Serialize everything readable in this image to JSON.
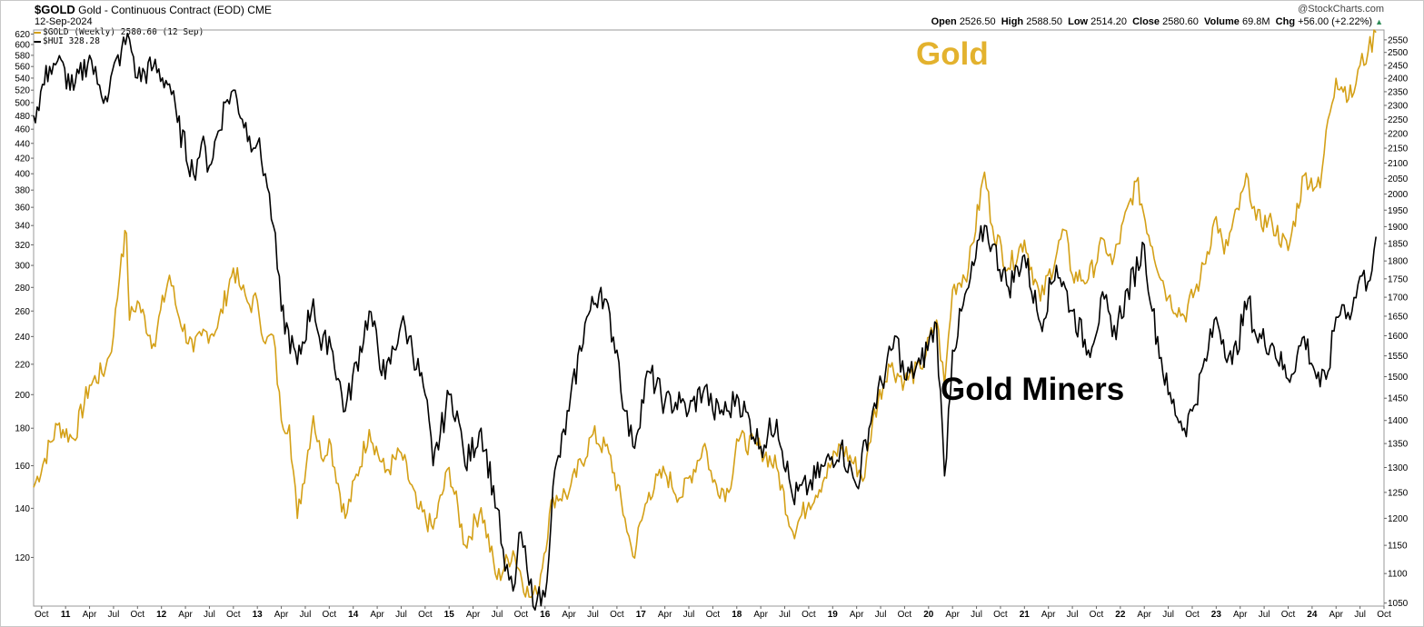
{
  "header": {
    "symbol": "$GOLD",
    "description": "Gold - Continuous Contract (EOD)",
    "exchange": "CME",
    "date": "12-Sep-2024",
    "credit": "@StockCharts.com",
    "open_label": "Open",
    "open": "2526.50",
    "high_label": "High",
    "high": "2588.50",
    "low_label": "Low",
    "low": "2514.20",
    "close_label": "Close",
    "close": "2580.60",
    "volume_label": "Volume",
    "volume": "69.8M",
    "chg_label": "Chg",
    "chg": "+56.00 (+2.22%)"
  },
  "legend": {
    "gold": "$GOLD (Weekly) 2580.60 (12 Sep)",
    "hui": "$HUI 328.28"
  },
  "colors": {
    "gold": "#D4A017",
    "hui": "#000000",
    "gold_text": "#E3B22E"
  },
  "annotations": {
    "gold": "Gold",
    "miners": "Gold Miners"
  },
  "chart_data": {
    "type": "line",
    "x_ticks": [
      "Oct",
      "11",
      "Apr",
      "Jul",
      "Oct",
      "12",
      "Apr",
      "Jul",
      "Oct",
      "13",
      "Apr",
      "Jul",
      "Oct",
      "14",
      "Apr",
      "Jul",
      "Oct",
      "15",
      "Apr",
      "Jul",
      "Oct",
      "16",
      "Apr",
      "Jul",
      "Oct",
      "17",
      "Apr",
      "Jul",
      "Oct",
      "18",
      "Apr",
      "Jul",
      "Oct",
      "19",
      "Apr",
      "Jul",
      "Oct",
      "20",
      "Apr",
      "Jul",
      "Oct",
      "21",
      "Apr",
      "Jul",
      "Oct",
      "22",
      "Apr",
      "Jul",
      "Oct",
      "23",
      "Apr",
      "Jul",
      "Oct",
      "24",
      "Apr",
      "Jul",
      "Oct"
    ],
    "x_range": [
      "2010-09",
      "2024-10"
    ],
    "left_axis": {
      "series": "$HUI",
      "scale": "log",
      "range": [
        103,
        628
      ],
      "ticks": [
        120,
        140,
        160,
        180,
        200,
        220,
        240,
        260,
        280,
        300,
        320,
        340,
        360,
        380,
        400,
        420,
        440,
        460,
        480,
        500,
        520,
        540,
        560,
        580,
        600,
        620
      ]
    },
    "right_axis": {
      "series": "$GOLD",
      "scale": "log",
      "range": [
        1045,
        2590
      ],
      "ticks": [
        1050,
        1100,
        1150,
        1200,
        1250,
        1300,
        1350,
        1400,
        1450,
        1500,
        1550,
        1600,
        1650,
        1700,
        1750,
        1800,
        1850,
        1900,
        1950,
        2000,
        2050,
        2100,
        2150,
        2200,
        2250,
        2300,
        2350,
        2400,
        2450,
        2500,
        2550
      ]
    },
    "series": [
      {
        "name": "$GOLD",
        "axis": "right",
        "points": [
          [
            "2010-09",
            1260
          ],
          [
            "2010-12",
            1390
          ],
          [
            "2011-02",
            1360
          ],
          [
            "2011-04",
            1480
          ],
          [
            "2011-06",
            1520
          ],
          [
            "2011-07",
            1600
          ],
          [
            "2011-08",
            1820
          ],
          [
            "2011-08-20",
            1880
          ],
          [
            "2011-09",
            1640
          ],
          [
            "2011-10",
            1690
          ],
          [
            "2011-12",
            1580
          ],
          [
            "2012-02",
            1760
          ],
          [
            "2012-03",
            1660
          ],
          [
            "2012-05",
            1560
          ],
          [
            "2012-06",
            1600
          ],
          [
            "2012-08",
            1620
          ],
          [
            "2012-10",
            1780
          ],
          [
            "2012-11",
            1720
          ],
          [
            "2012-12",
            1680
          ],
          [
            "2013-01",
            1690
          ],
          [
            "2013-02",
            1580
          ],
          [
            "2013-03",
            1600
          ],
          [
            "2013-04",
            1400
          ],
          [
            "2013-05",
            1390
          ],
          [
            "2013-06",
            1200
          ],
          [
            "2013-08",
            1410
          ],
          [
            "2013-09",
            1320
          ],
          [
            "2013-10",
            1360
          ],
          [
            "2013-12",
            1200
          ],
          [
            "2014-03",
            1380
          ],
          [
            "2014-05",
            1290
          ],
          [
            "2014-07",
            1330
          ],
          [
            "2014-09",
            1220
          ],
          [
            "2014-11",
            1180
          ],
          [
            "2015-01",
            1300
          ],
          [
            "2015-03",
            1150
          ],
          [
            "2015-05",
            1220
          ],
          [
            "2015-07",
            1090
          ],
          [
            "2015-09",
            1140
          ],
          [
            "2015-11",
            1060
          ],
          [
            "2015-12",
            1065
          ],
          [
            "2016-02",
            1240
          ],
          [
            "2016-04",
            1250
          ],
          [
            "2016-07",
            1370
          ],
          [
            "2016-09",
            1330
          ],
          [
            "2016-11",
            1200
          ],
          [
            "2016-12",
            1130
          ],
          [
            "2017-02",
            1250
          ],
          [
            "2017-04",
            1290
          ],
          [
            "2017-06",
            1240
          ],
          [
            "2017-09",
            1350
          ],
          [
            "2017-10",
            1270
          ],
          [
            "2017-12",
            1250
          ],
          [
            "2018-01",
            1360
          ],
          [
            "2018-04",
            1340
          ],
          [
            "2018-06",
            1300
          ],
          [
            "2018-08",
            1175
          ],
          [
            "2018-10",
            1230
          ],
          [
            "2018-12",
            1280
          ],
          [
            "2019-02",
            1345
          ],
          [
            "2019-05",
            1280
          ],
          [
            "2019-06",
            1400
          ],
          [
            "2019-08",
            1530
          ],
          [
            "2019-10",
            1490
          ],
          [
            "2019-12",
            1520
          ],
          [
            "2020-02",
            1640
          ],
          [
            "2020-03",
            1480
          ],
          [
            "2020-04",
            1720
          ],
          [
            "2020-06",
            1780
          ],
          [
            "2020-08",
            2070
          ],
          [
            "2020-09",
            1900
          ],
          [
            "2020-11",
            1780
          ],
          [
            "2021-01",
            1860
          ],
          [
            "2021-03",
            1690
          ],
          [
            "2021-06",
            1890
          ],
          [
            "2021-07",
            1760
          ],
          [
            "2021-09",
            1750
          ],
          [
            "2021-11",
            1860
          ],
          [
            "2021-12",
            1790
          ],
          [
            "2022-03",
            2040
          ],
          [
            "2022-05",
            1840
          ],
          [
            "2022-07",
            1700
          ],
          [
            "2022-09",
            1650
          ],
          [
            "2022-11",
            1750
          ],
          [
            "2023-01",
            1930
          ],
          [
            "2023-02",
            1820
          ],
          [
            "2023-05",
            2050
          ],
          [
            "2023-06",
            1920
          ],
          [
            "2023-08",
            1910
          ],
          [
            "2023-10",
            1830
          ],
          [
            "2023-12",
            2060
          ],
          [
            "2024-02",
            2020
          ],
          [
            "2024-03",
            2250
          ],
          [
            "2024-04",
            2400
          ],
          [
            "2024-06",
            2330
          ],
          [
            "2024-07",
            2450
          ],
          [
            "2024-08",
            2500
          ],
          [
            "2024-09",
            2580
          ]
        ]
      },
      {
        "name": "$HUI",
        "axis": "left",
        "points": [
          [
            "2010-09",
            480
          ],
          [
            "2010-11",
            560
          ],
          [
            "2010-12",
            570
          ],
          [
            "2011-02",
            520
          ],
          [
            "2011-04",
            580
          ],
          [
            "2011-05",
            530
          ],
          [
            "2011-06",
            510
          ],
          [
            "2011-08",
            590
          ],
          [
            "2011-09",
            610
          ],
          [
            "2011-10",
            540
          ],
          [
            "2011-12",
            560
          ],
          [
            "2012-02",
            530
          ],
          [
            "2012-03",
            470
          ],
          [
            "2012-05",
            400
          ],
          [
            "2012-06",
            440
          ],
          [
            "2012-07",
            410
          ],
          [
            "2012-09",
            500
          ],
          [
            "2012-10",
            520
          ],
          [
            "2012-12",
            450
          ],
          [
            "2013-01",
            440
          ],
          [
            "2013-02",
            400
          ],
          [
            "2013-03",
            340
          ],
          [
            "2013-04",
            260
          ],
          [
            "2013-06",
            220
          ],
          [
            "2013-08",
            270
          ],
          [
            "2013-09",
            230
          ],
          [
            "2013-10",
            240
          ],
          [
            "2013-12",
            190
          ],
          [
            "2014-03",
            260
          ],
          [
            "2014-05",
            210
          ],
          [
            "2014-07",
            250
          ],
          [
            "2014-08",
            240
          ],
          [
            "2014-10",
            200
          ],
          [
            "2014-11",
            160
          ],
          [
            "2015-01",
            200
          ],
          [
            "2015-02",
            190
          ],
          [
            "2015-03",
            160
          ],
          [
            "2015-05",
            180
          ],
          [
            "2015-07",
            140
          ],
          [
            "2015-08",
            115
          ],
          [
            "2015-09",
            108
          ],
          [
            "2015-10",
            130
          ],
          [
            "2015-11",
            110
          ],
          [
            "2015-12",
            105
          ],
          [
            "2016-01",
            106
          ],
          [
            "2016-02",
            150
          ],
          [
            "2016-04",
            190
          ],
          [
            "2016-06",
            250
          ],
          [
            "2016-08",
            280
          ],
          [
            "2016-10",
            230
          ],
          [
            "2016-11",
            190
          ],
          [
            "2016-12",
            170
          ],
          [
            "2017-02",
            215
          ],
          [
            "2017-04",
            195
          ],
          [
            "2017-06",
            195
          ],
          [
            "2017-07",
            190
          ],
          [
            "2017-09",
            205
          ],
          [
            "2017-10",
            190
          ],
          [
            "2017-12",
            190
          ],
          [
            "2018-01",
            200
          ],
          [
            "2018-04",
            170
          ],
          [
            "2018-06",
            185
          ],
          [
            "2018-08",
            145
          ],
          [
            "2018-10",
            150
          ],
          [
            "2018-12",
            160
          ],
          [
            "2019-02",
            170
          ],
          [
            "2019-04",
            150
          ],
          [
            "2019-06",
            190
          ],
          [
            "2019-09",
            240
          ],
          [
            "2019-10",
            210
          ],
          [
            "2019-12",
            220
          ],
          [
            "2020-02",
            250
          ],
          [
            "2020-03",
            155
          ],
          [
            "2020-04",
            230
          ],
          [
            "2020-06",
            280
          ],
          [
            "2020-08",
            340
          ],
          [
            "2020-09",
            320
          ],
          [
            "2020-11",
            280
          ],
          [
            "2021-01",
            310
          ],
          [
            "2021-03",
            250
          ],
          [
            "2021-05",
            300
          ],
          [
            "2021-07",
            260
          ],
          [
            "2021-09",
            230
          ],
          [
            "2021-11",
            270
          ],
          [
            "2021-12",
            240
          ],
          [
            "2022-04",
            320
          ],
          [
            "2022-05",
            260
          ],
          [
            "2022-07",
            200
          ],
          [
            "2022-09",
            180
          ],
          [
            "2022-10",
            190
          ],
          [
            "2022-12",
            230
          ],
          [
            "2023-01",
            255
          ],
          [
            "2023-03",
            220
          ],
          [
            "2023-05",
            270
          ],
          [
            "2023-06",
            240
          ],
          [
            "2023-08",
            235
          ],
          [
            "2023-10",
            210
          ],
          [
            "2023-12",
            240
          ],
          [
            "2024-02",
            205
          ],
          [
            "2024-03",
            215
          ],
          [
            "2024-04",
            255
          ],
          [
            "2024-05",
            265
          ],
          [
            "2024-06",
            260
          ],
          [
            "2024-07",
            290
          ],
          [
            "2024-08",
            285
          ],
          [
            "2024-09",
            328.28
          ]
        ]
      }
    ],
    "grid": false,
    "legend_position": "top-left"
  }
}
